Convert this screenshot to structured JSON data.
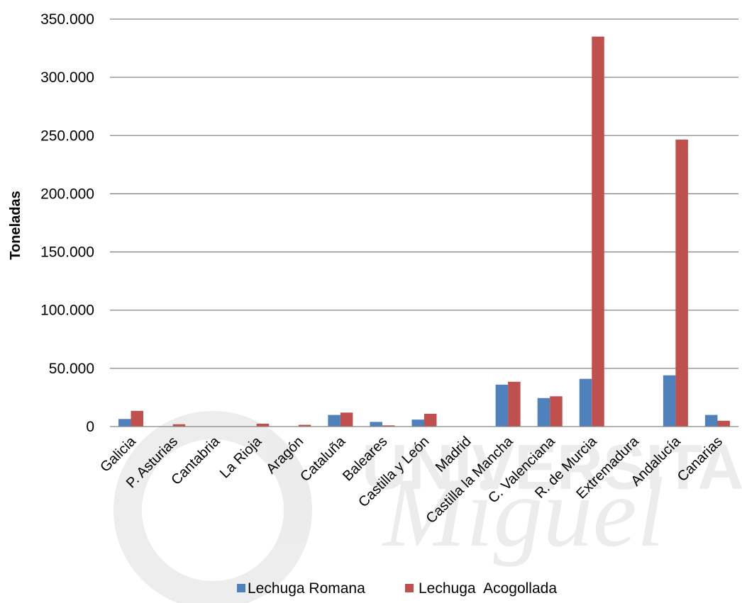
{
  "chart_data": {
    "type": "bar",
    "ylabel": "Toneladas",
    "ylim": [
      0,
      350000
    ],
    "yticks": [
      "0",
      "50.000",
      "100.000",
      "150.000",
      "200.000",
      "250.000",
      "300.000",
      "350.000"
    ],
    "grid": true,
    "legend_position": "bottom",
    "categories": [
      "Galicia",
      "P. Asturias",
      "Cantabria",
      "La Rioja",
      "Aragón",
      "Cataluña",
      "Baleares",
      "Castilla y León",
      "Madrid",
      "Castilla la Mancha",
      "C. Valenciana",
      "R. de Murcia",
      "Extremadura",
      "Andalucía",
      "Canarias"
    ],
    "series": [
      {
        "name": "Lechuga Romana",
        "color": "#4f81bd",
        "values": [
          6500,
          0,
          0,
          0,
          0,
          10000,
          4000,
          6000,
          0,
          36000,
          24500,
          41000,
          0,
          44000,
          10000
        ]
      },
      {
        "name": "Lechuga  Acogollada",
        "color": "#c0504d",
        "values": [
          13500,
          2000,
          0,
          2500,
          1500,
          12000,
          1000,
          11000,
          0,
          38500,
          26000,
          335000,
          0,
          246500,
          5000
        ]
      }
    ]
  }
}
